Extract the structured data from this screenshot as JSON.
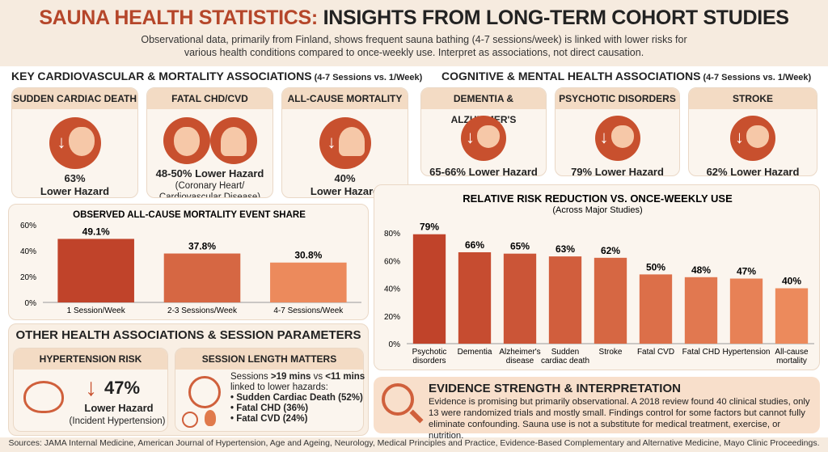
{
  "header": {
    "title_accent": "SAUNA HEALTH STATISTICS:",
    "title_rest": " INSIGHTS FROM LONG-TERM COHORT STUDIES",
    "subtitle_1": "Observational data, primarily from Finland, shows frequent sauna bathing (4-7 sessions/week) is linked with lower risks for",
    "subtitle_2": "various health conditions compared to once-weekly use. Interpret as associations, not direct causation."
  },
  "cardio": {
    "heading": "KEY CARDIOVASCULAR & MORTALITY ASSOCIATIONS",
    "heading_small": " (4-7 Sessions vs. 1/Week)",
    "cards": [
      {
        "title": "SUDDEN CARDIAC DEATH",
        "value": "63%",
        "label": "Lower Hazard",
        "icon": "heart-down-icon"
      },
      {
        "title": "FATAL CHD/CVD",
        "value": "48-50% Lower Hazard",
        "note1": "(Coronary Heart/",
        "note2": "Cardiovascular Disease)",
        "icon": "heart-plus-doctor-icon"
      },
      {
        "title": "ALL-CAUSE MORTALITY",
        "value": "40%",
        "label": "Lower Hazard",
        "icon": "person-down-icon"
      }
    ]
  },
  "cognitive": {
    "heading": "COGNITIVE & MENTAL HEALTH ASSOCIATIONS",
    "heading_small": " (4-7 Sessions vs. 1/Week)",
    "cards": [
      {
        "title": "DEMENTIA & ALZHEIMER'S",
        "value": "65-66% Lower Hazard",
        "icon": "brain-down-icon"
      },
      {
        "title": "PSYCHOTIC DISORDERS",
        "value": "79% Lower Hazard",
        "icon": "head-down-icon"
      },
      {
        "title": "STROKE",
        "value": "62% Lower Hazard",
        "icon": "brain-down-icon"
      }
    ]
  },
  "chart_data": [
    {
      "type": "bar",
      "title": "OBSERVED ALL-CAUSE MORTALITY EVENT SHARE",
      "categories": [
        "1 Session/Week",
        "2-3 Sessions/Week",
        "4-7 Sessions/Week"
      ],
      "values": [
        49.1,
        37.8,
        30.8
      ],
      "labels": [
        "49.1%",
        "37.8%",
        "30.8%"
      ],
      "ylim": [
        0,
        60
      ],
      "yticks": [
        "0%",
        "20%",
        "40%",
        "60%"
      ],
      "grid": false
    },
    {
      "type": "bar",
      "title": "RELATIVE RISK REDUCTION VS. ONCE-WEEKLY USE",
      "subtitle": "(Across Major Studies)",
      "categories": [
        [
          "Psychotic",
          "disorders"
        ],
        [
          "Dementia"
        ],
        [
          "Alzheimer's",
          "disease"
        ],
        [
          "Sudden",
          "cardiac death"
        ],
        [
          "Stroke"
        ],
        [
          "Fatal CVD"
        ],
        [
          "Fatal CHD"
        ],
        [
          "Hypertension"
        ],
        [
          "All-cause",
          "mortality"
        ]
      ],
      "values": [
        79,
        66,
        65,
        63,
        62,
        50,
        48,
        47,
        40
      ],
      "labels": [
        "79%",
        "66%",
        "65%",
        "63%",
        "62%",
        "50%",
        "48%",
        "47%",
        "40%"
      ],
      "ylim": [
        0,
        80
      ],
      "yticks": [
        "0%",
        "20%",
        "40%",
        "60%",
        "80%"
      ],
      "grid": false
    }
  ],
  "other": {
    "heading": "OTHER HEALTH ASSOCIATIONS & SESSION PARAMETERS",
    "hyper": {
      "title": "HYPERTENSION RISK",
      "value": "47%",
      "label": "Lower Hazard",
      "note": "(Incident Hypertension)"
    },
    "session": {
      "title": "SESSION LENGTH MATTERS",
      "line1_a": "Sessions ",
      "line1_b": ">19 mins",
      "line1_c": " vs ",
      "line1_d": "<11 mins",
      "line2": "linked to lower hazards:",
      "bullets": [
        "• Sudden Cardiac Death (52%)",
        "• Fatal CHD (36%)",
        "• Fatal CVD (24%)"
      ]
    }
  },
  "evidence": {
    "title": "EVIDENCE STRENGTH & INTERPRETATION",
    "body": "Evidence is promising but primarily observational. A 2018 review found 40 clinical studies, only 13 were randomized trials and mostly small. Findings control for some factors but cannot fully eliminate confounding. Sauna use is not a substitute for medical treatment, exercise, or nutrition."
  },
  "sources": "Sources: JAMA Internal Medicine, American Journal of Hypertension, Age and Ageing, Neurology, Medical Principles and Practice, Evidence-Based Complementary and Alternative Medicine, Mayo Clinic Proceedings.",
  "colors": {
    "accent": "#b5462a",
    "bar_dark": "#c0432a",
    "bar_light": "#ec8a5c",
    "background": "#f6ebdf"
  }
}
